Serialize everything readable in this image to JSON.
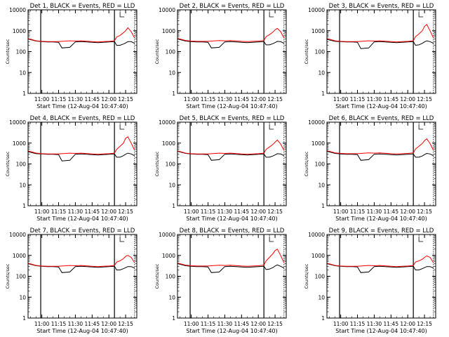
{
  "x_axis_label": "Start Time (12-Aug-04 10:47:40)",
  "y_axis_label": "Counts/sec",
  "x_ticks": [
    "11:00",
    "11:15",
    "11:30",
    "11:45",
    "12:00",
    "12:15"
  ],
  "y_ticks": [
    "1",
    "10",
    "100",
    "1000",
    "10000"
  ],
  "colors": {
    "events": "#000000",
    "lld": "#ff0000"
  },
  "chart_data": [
    {
      "type": "line",
      "title": "Det 1, BLACK = Events, RED = LLD",
      "xlabel": "Start Time (12-Aug-04 10:47:40)",
      "ylabel": "Counts/sec",
      "y_scale": "log",
      "ylim": [
        1,
        10000
      ],
      "xlim": [
        "10:47:40",
        "12:25"
      ],
      "x": [
        "10:48",
        "10:55",
        "11:00",
        "11:05",
        "11:10",
        "11:15",
        "11:18",
        "11:25",
        "11:30",
        "11:35",
        "11:45",
        "11:50",
        "11:55",
        "12:00",
        "12:05",
        "12:07",
        "12:10",
        "12:13",
        "12:15",
        "12:17",
        "12:20",
        "12:23"
      ],
      "series": [
        {
          "name": "Events",
          "values": [
            400,
            320,
            300,
            290,
            290,
            280,
            150,
            160,
            290,
            300,
            280,
            270,
            280,
            290,
            300,
            200,
            200,
            230,
            260,
            300,
            300,
            250
          ]
        },
        {
          "name": "LLD",
          "values": [
            420,
            330,
            310,
            300,
            300,
            300,
            310,
            330,
            320,
            330,
            300,
            290,
            300,
            310,
            330,
            500,
            600,
            800,
            1000,
            1400,
            900,
            450
          ]
        }
      ]
    },
    {
      "type": "line",
      "title": "Det 2, BLACK = Events, RED = LLD",
      "xlabel": "Start Time (12-Aug-04 10:47:40)",
      "ylabel": "Counts/sec",
      "y_scale": "log",
      "ylim": [
        1,
        10000
      ],
      "xlim": [
        "10:47:40",
        "12:25"
      ],
      "x": [
        "10:48",
        "10:55",
        "11:00",
        "11:05",
        "11:10",
        "11:15",
        "11:18",
        "11:25",
        "11:30",
        "11:35",
        "11:45",
        "11:50",
        "11:55",
        "12:00",
        "12:05",
        "12:07",
        "12:10",
        "12:13",
        "12:15",
        "12:17",
        "12:20",
        "12:23"
      ],
      "series": [
        {
          "name": "Events",
          "values": [
            400,
            320,
            300,
            290,
            290,
            280,
            150,
            160,
            290,
            300,
            280,
            270,
            280,
            290,
            300,
            210,
            210,
            240,
            270,
            310,
            300,
            250
          ]
        },
        {
          "name": "LLD",
          "values": [
            430,
            340,
            320,
            310,
            310,
            310,
            320,
            340,
            330,
            340,
            310,
            300,
            310,
            320,
            340,
            520,
            650,
            850,
            1100,
            1300,
            900,
            450
          ]
        }
      ]
    },
    {
      "type": "line",
      "title": "Det 3, BLACK = Events, RED = LLD",
      "xlabel": "Start Time (12-Aug-04 10:47:40)",
      "ylabel": "Counts/sec",
      "y_scale": "log",
      "ylim": [
        1,
        10000
      ],
      "xlim": [
        "10:47:40",
        "12:25"
      ],
      "x": [
        "10:48",
        "10:55",
        "11:00",
        "11:05",
        "11:10",
        "11:15",
        "11:18",
        "11:25",
        "11:30",
        "11:35",
        "11:45",
        "11:50",
        "11:55",
        "12:00",
        "12:05",
        "12:07",
        "12:10",
        "12:13",
        "12:15",
        "12:17",
        "12:20",
        "12:23"
      ],
      "series": [
        {
          "name": "Events",
          "values": [
            380,
            310,
            300,
            290,
            290,
            280,
            140,
            150,
            290,
            300,
            280,
            270,
            280,
            290,
            300,
            200,
            210,
            250,
            290,
            330,
            300,
            250
          ]
        },
        {
          "name": "LLD",
          "values": [
            420,
            330,
            310,
            300,
            300,
            300,
            310,
            330,
            320,
            330,
            300,
            290,
            300,
            310,
            330,
            520,
            700,
            1000,
            1600,
            2000,
            1000,
            450
          ]
        }
      ]
    },
    {
      "type": "line",
      "title": "Det 4, BLACK = Events, RED = LLD",
      "xlabel": "Start Time (12-Aug-04 10:47:40)",
      "ylabel": "Counts/sec",
      "y_scale": "log",
      "ylim": [
        1,
        10000
      ],
      "xlim": [
        "10:47:40",
        "12:25"
      ],
      "x": [
        "10:48",
        "10:55",
        "11:00",
        "11:05",
        "11:10",
        "11:15",
        "11:18",
        "11:25",
        "11:30",
        "11:35",
        "11:45",
        "11:50",
        "11:55",
        "12:00",
        "12:05",
        "12:07",
        "12:10",
        "12:13",
        "12:15",
        "12:17",
        "12:20",
        "12:23"
      ],
      "series": [
        {
          "name": "Events",
          "values": [
            380,
            310,
            300,
            290,
            290,
            280,
            140,
            150,
            290,
            300,
            280,
            270,
            280,
            290,
            300,
            210,
            210,
            250,
            290,
            330,
            300,
            250
          ]
        },
        {
          "name": "LLD",
          "values": [
            420,
            330,
            310,
            300,
            300,
            300,
            310,
            330,
            320,
            330,
            300,
            290,
            300,
            310,
            330,
            500,
            700,
            1000,
            1700,
            2000,
            1000,
            450
          ]
        }
      ]
    },
    {
      "type": "line",
      "title": "Det 5, BLACK = Events, RED = LLD",
      "xlabel": "Start Time (12-Aug-04 10:47:40)",
      "ylabel": "Counts/sec",
      "y_scale": "log",
      "ylim": [
        1,
        10000
      ],
      "xlim": [
        "10:47:40",
        "12:25"
      ],
      "x": [
        "10:48",
        "10:55",
        "11:00",
        "11:05",
        "11:10",
        "11:15",
        "11:18",
        "11:25",
        "11:30",
        "11:35",
        "11:45",
        "11:50",
        "11:55",
        "12:00",
        "12:05",
        "12:07",
        "12:10",
        "12:13",
        "12:15",
        "12:17",
        "12:20",
        "12:23"
      ],
      "series": [
        {
          "name": "Events",
          "values": [
            400,
            320,
            300,
            290,
            290,
            280,
            150,
            160,
            290,
            300,
            280,
            270,
            280,
            290,
            300,
            210,
            210,
            240,
            270,
            310,
            300,
            250
          ]
        },
        {
          "name": "LLD",
          "values": [
            420,
            330,
            310,
            300,
            300,
            300,
            310,
            330,
            320,
            330,
            300,
            290,
            300,
            310,
            330,
            500,
            650,
            850,
            1100,
            1400,
            900,
            450
          ]
        }
      ]
    },
    {
      "type": "line",
      "title": "Det 6, BLACK = Events, RED = LLD",
      "xlabel": "Start Time (12-Aug-04 10:47:40)",
      "ylabel": "Counts/sec",
      "y_scale": "log",
      "ylim": [
        1,
        10000
      ],
      "xlim": [
        "10:47:40",
        "12:25"
      ],
      "x": [
        "10:48",
        "10:55",
        "11:00",
        "11:05",
        "11:10",
        "11:15",
        "11:18",
        "11:25",
        "11:30",
        "11:35",
        "11:45",
        "11:50",
        "11:55",
        "12:00",
        "12:05",
        "12:07",
        "12:10",
        "12:13",
        "12:15",
        "12:17",
        "12:20",
        "12:23"
      ],
      "series": [
        {
          "name": "Events",
          "values": [
            400,
            320,
            300,
            290,
            290,
            280,
            150,
            160,
            290,
            300,
            280,
            270,
            280,
            290,
            300,
            210,
            210,
            240,
            280,
            320,
            300,
            250
          ]
        },
        {
          "name": "LLD",
          "values": [
            430,
            340,
            320,
            310,
            310,
            310,
            320,
            340,
            330,
            340,
            310,
            300,
            310,
            320,
            340,
            520,
            700,
            950,
            1300,
            1600,
            950,
            450
          ]
        }
      ]
    },
    {
      "type": "line",
      "title": "Det 7, BLACK = Events, RED = LLD",
      "xlabel": "Start Time (12-Aug-04 10:47:40)",
      "ylabel": "Counts/sec",
      "y_scale": "log",
      "ylim": [
        1,
        10000
      ],
      "xlim": [
        "10:47:40",
        "12:25"
      ],
      "x": [
        "10:48",
        "10:55",
        "11:00",
        "11:05",
        "11:10",
        "11:15",
        "11:18",
        "11:25",
        "11:30",
        "11:35",
        "11:45",
        "11:50",
        "11:55",
        "12:00",
        "12:05",
        "12:07",
        "12:10",
        "12:13",
        "12:15",
        "12:17",
        "12:20",
        "12:23"
      ],
      "series": [
        {
          "name": "Events",
          "values": [
            400,
            320,
            300,
            290,
            290,
            280,
            150,
            160,
            290,
            300,
            280,
            270,
            280,
            290,
            300,
            200,
            200,
            230,
            260,
            290,
            290,
            250
          ]
        },
        {
          "name": "LLD",
          "values": [
            420,
            330,
            310,
            300,
            300,
            300,
            310,
            330,
            320,
            330,
            300,
            290,
            300,
            310,
            330,
            480,
            550,
            700,
            900,
            1000,
            800,
            450
          ]
        }
      ]
    },
    {
      "type": "line",
      "title": "Det 8, BLACK = Events, RED = LLD",
      "xlabel": "Start Time (12-Aug-04 10:47:40)",
      "ylabel": "Counts/sec",
      "y_scale": "log",
      "ylim": [
        1,
        10000
      ],
      "xlim": [
        "10:47:40",
        "12:25"
      ],
      "x": [
        "10:48",
        "10:55",
        "11:00",
        "11:05",
        "11:10",
        "11:15",
        "11:18",
        "11:25",
        "11:30",
        "11:35",
        "11:45",
        "11:50",
        "11:55",
        "12:00",
        "12:05",
        "12:07",
        "12:10",
        "12:13",
        "12:15",
        "12:17",
        "12:20",
        "12:23"
      ],
      "series": [
        {
          "name": "Events",
          "values": [
            400,
            320,
            300,
            290,
            290,
            280,
            150,
            160,
            290,
            300,
            280,
            270,
            280,
            290,
            300,
            210,
            220,
            260,
            310,
            350,
            300,
            250
          ]
        },
        {
          "name": "LLD",
          "values": [
            430,
            340,
            320,
            310,
            310,
            310,
            320,
            340,
            330,
            340,
            310,
            300,
            310,
            320,
            340,
            550,
            800,
            1200,
            1700,
            2000,
            1000,
            450
          ]
        }
      ]
    },
    {
      "type": "line",
      "title": "Det 9, BLACK = Events, RED = LLD",
      "xlabel": "Start Time (12-Aug-04 10:47:40)",
      "ylabel": "Counts/sec",
      "y_scale": "log",
      "ylim": [
        1,
        10000
      ],
      "xlim": [
        "10:47:40",
        "12:25"
      ],
      "x": [
        "10:48",
        "10:55",
        "11:00",
        "11:05",
        "11:10",
        "11:15",
        "11:18",
        "11:25",
        "11:30",
        "11:35",
        "11:45",
        "11:50",
        "11:55",
        "12:00",
        "12:05",
        "12:07",
        "12:10",
        "12:13",
        "12:15",
        "12:17",
        "12:20",
        "12:23"
      ],
      "series": [
        {
          "name": "Events",
          "values": [
            400,
            320,
            300,
            290,
            290,
            280,
            150,
            160,
            290,
            300,
            280,
            270,
            280,
            290,
            300,
            200,
            200,
            230,
            260,
            290,
            290,
            250
          ]
        },
        {
          "name": "LLD",
          "values": [
            420,
            330,
            310,
            300,
            300,
            300,
            310,
            330,
            320,
            330,
            300,
            290,
            300,
            310,
            330,
            480,
            550,
            650,
            800,
            950,
            800,
            450
          ]
        }
      ]
    }
  ]
}
